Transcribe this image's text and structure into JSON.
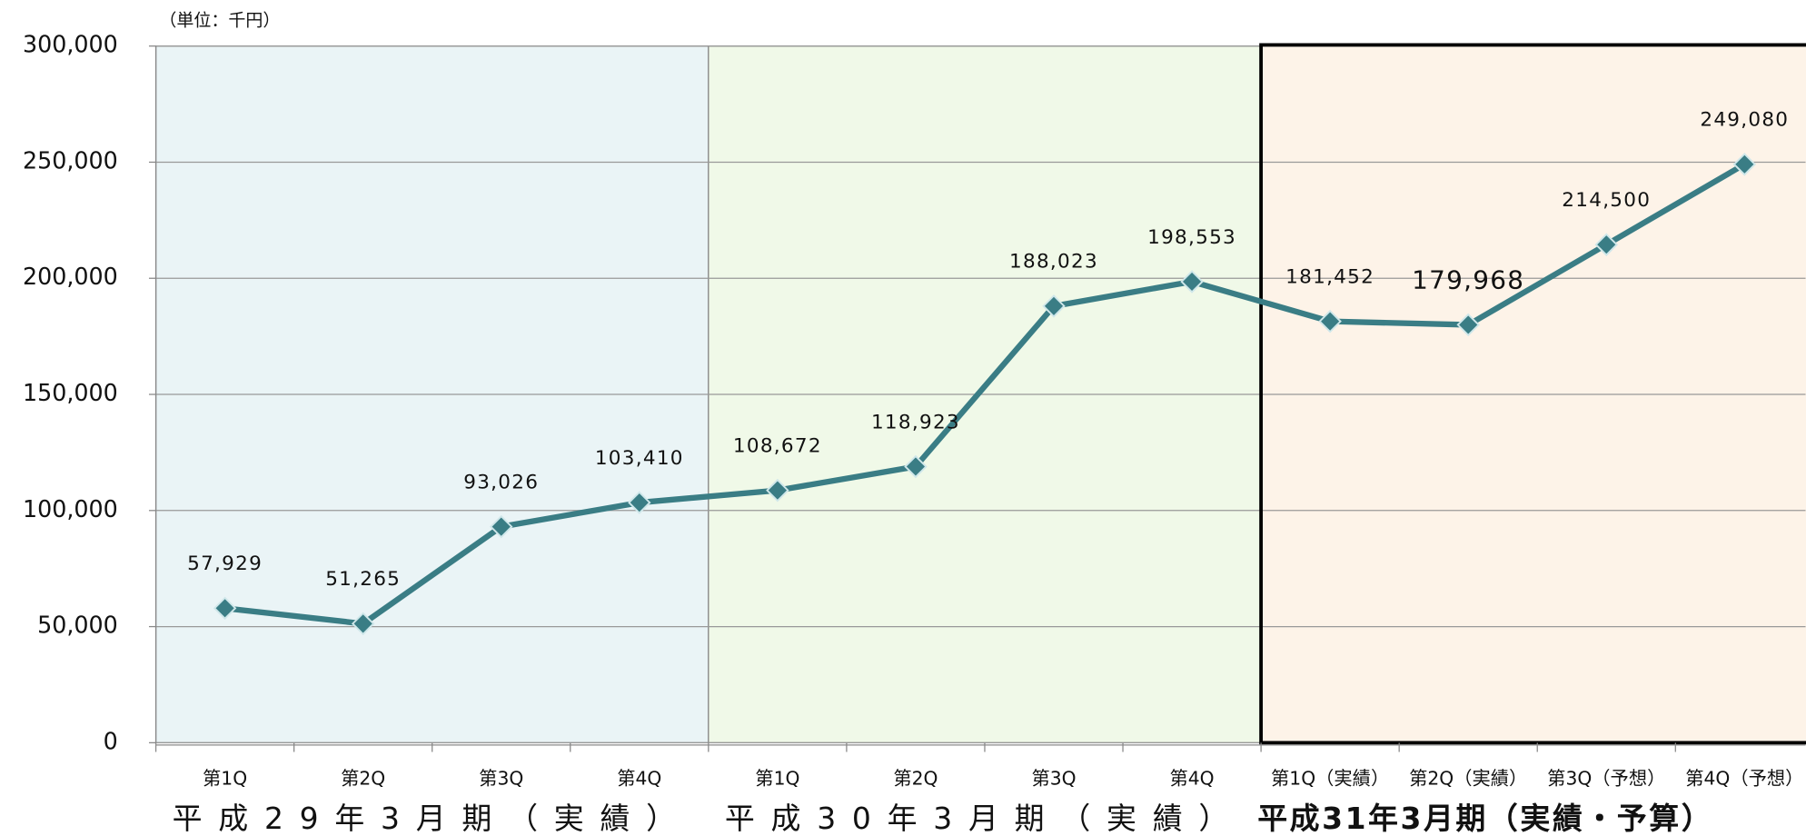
{
  "chart_data": {
    "type": "line",
    "unit_label": "（単位：千円）",
    "groups": [
      {
        "name": "平成29年3月期（実績）",
        "color": "#eaf4f6",
        "categories": [
          "第1Q",
          "第2Q",
          "第3Q",
          "第4Q"
        ]
      },
      {
        "name": "平成30年3月期（実績）",
        "color": "#f0f9e8",
        "categories": [
          "第1Q",
          "第2Q",
          "第3Q",
          "第4Q"
        ]
      },
      {
        "name": "平成31年3月期（実績・予算）",
        "color": "#fdf3e8",
        "categories": [
          "第1Q（実績）",
          "第2Q（実績）",
          "第3Q（予想）",
          "第4Q（予想）"
        ]
      }
    ],
    "series": [
      {
        "color": "#3a7d85",
        "values": [
          57929,
          51265,
          93026,
          103410,
          108672,
          118923,
          188023,
          198553,
          181452,
          179968,
          214500,
          249080
        ],
        "value_labels": [
          "57,929",
          "51,265",
          "93,026",
          "103,410",
          "108,672",
          "118,923",
          "188,023",
          "198,553",
          "181,452",
          "179,968",
          "214,500",
          "249,080"
        ]
      }
    ],
    "ylim": [
      0,
      300000
    ],
    "yticks": [
      0,
      {
        "value": 50000,
        "label": "50,000"
      },
      {
        "value": 100000,
        "label": "100,000"
      },
      {
        "value": 150000,
        "label": "150,000"
      },
      {
        "value": 200000,
        "label": "200,000"
      },
      {
        "value": 250000,
        "label": "250,000"
      },
      {
        "value": 300000,
        "label": "300,000"
      }
    ],
    "grid": true
  }
}
